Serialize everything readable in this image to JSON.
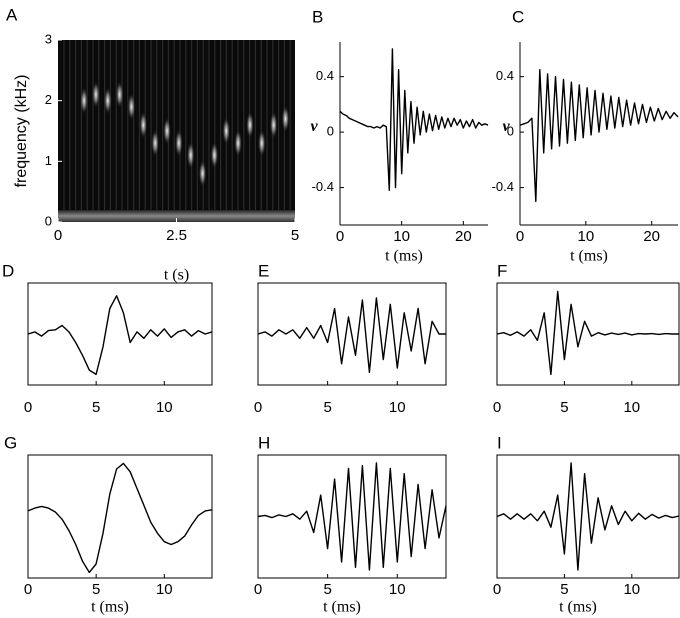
{
  "chart_data": [
    {
      "type": "spectrogram",
      "label": "A",
      "xlabel": "t (s)",
      "ylabel": "frequency  (kHz)",
      "xlim": [
        0,
        5
      ],
      "ylim": [
        0,
        3
      ],
      "xticks": [
        0,
        2.5,
        5
      ],
      "yticks": [
        0,
        1,
        2,
        3
      ],
      "x": [
        0.55,
        0.8,
        1.05,
        1.3,
        1.55,
        1.8,
        2.05,
        2.3,
        2.55,
        2.8,
        3.05,
        3.3,
        3.55,
        3.8,
        4.05,
        4.3,
        4.55,
        4.8
      ],
      "values": [
        2.0,
        2.1,
        2.0,
        2.1,
        1.9,
        1.6,
        1.3,
        1.5,
        1.3,
        1.1,
        0.8,
        1.1,
        1.5,
        1.3,
        1.6,
        1.3,
        1.6,
        1.7
      ]
    },
    {
      "type": "line",
      "label": "B",
      "xlabel": "t (ms)",
      "ylabel": "v",
      "frame": false,
      "color": "#000000",
      "xlim": [
        0,
        24
      ],
      "ylim": [
        -0.67,
        0.65
      ],
      "xticks": [
        0,
        10,
        20
      ],
      "yticks": [
        -0.4,
        0,
        0.4
      ],
      "x": [
        0,
        0.5,
        1,
        1.5,
        2,
        2.5,
        3,
        3.5,
        4,
        4.5,
        5,
        5.5,
        6,
        6.5,
        7,
        7.5,
        8,
        8.5,
        9,
        9.5,
        10,
        10.5,
        11,
        11.5,
        12,
        12.5,
        13,
        13.5,
        14,
        14.5,
        15,
        15.5,
        16,
        16.5,
        17,
        17.5,
        18,
        18.5,
        19,
        19.5,
        20,
        20.5,
        21,
        21.5,
        22,
        22.5,
        23,
        23.5,
        24
      ],
      "values": [
        0.15,
        0.13,
        0.12,
        0.1,
        0.09,
        0.08,
        0.07,
        0.06,
        0.05,
        0.04,
        0.04,
        0.03,
        0.04,
        0.03,
        0.05,
        0.04,
        -0.42,
        0.6,
        -0.4,
        0.45,
        -0.3,
        0.3,
        -0.15,
        0.22,
        -0.08,
        0.18,
        -0.02,
        0.15,
        0.0,
        0.13,
        0.01,
        0.12,
        0.02,
        0.11,
        0.03,
        0.1,
        0.04,
        0.1,
        0.05,
        0.09,
        0.03,
        0.08,
        0.04,
        0.09,
        0.03,
        0.07,
        0.05,
        0.06,
        0.05
      ]
    },
    {
      "type": "line",
      "label": "C",
      "xlabel": "t (ms)",
      "ylabel": "v",
      "frame": false,
      "color": "#000000",
      "xlim": [
        0,
        24
      ],
      "ylim": [
        -0.67,
        0.65
      ],
      "xticks": [
        0,
        10,
        20
      ],
      "yticks": [
        -0.4,
        0,
        0.4
      ],
      "x": [
        0,
        0.6,
        1.2,
        1.8,
        2.4,
        3.0,
        3.6,
        4.2,
        4.8,
        5.4,
        6.0,
        6.6,
        7.2,
        7.8,
        8.4,
        9.0,
        9.6,
        10.2,
        10.8,
        11.4,
        12.0,
        12.6,
        13.2,
        13.8,
        14.4,
        15.0,
        15.6,
        16.2,
        16.8,
        17.4,
        18.0,
        18.6,
        19.2,
        19.8,
        20.4,
        21.0,
        21.6,
        22.2,
        22.8,
        23.4,
        24.0
      ],
      "values": [
        0.05,
        0.06,
        0.07,
        0.1,
        -0.5,
        0.45,
        -0.15,
        0.42,
        -0.12,
        0.4,
        -0.1,
        0.38,
        -0.08,
        0.36,
        -0.06,
        0.34,
        -0.04,
        0.32,
        -0.02,
        0.3,
        0.0,
        0.28,
        0.02,
        0.26,
        0.03,
        0.25,
        0.04,
        0.23,
        0.05,
        0.21,
        0.06,
        0.2,
        0.07,
        0.18,
        0.08,
        0.17,
        0.09,
        0.15,
        0.1,
        0.14,
        0.11
      ]
    },
    {
      "type": "line",
      "label": "D",
      "frame": true,
      "color": "#000000",
      "xlim": [
        0,
        13.5
      ],
      "ylim": [
        -1.2,
        1.2
      ],
      "xticks": [
        0,
        5,
        10
      ],
      "x": [
        0,
        0.5,
        1,
        1.5,
        2,
        2.5,
        3,
        3.5,
        4,
        4.5,
        5,
        5.5,
        6,
        6.5,
        7,
        7.5,
        8,
        8.5,
        9,
        9.5,
        10,
        10.5,
        11,
        11.5,
        12,
        12.5,
        13,
        13.5
      ],
      "values": [
        0.0,
        0.05,
        -0.05,
        0.08,
        0.1,
        0.2,
        0.05,
        -0.2,
        -0.5,
        -0.85,
        -0.95,
        -0.3,
        0.6,
        0.9,
        0.5,
        -0.2,
        0.05,
        -0.1,
        0.1,
        -0.05,
        0.12,
        -0.08,
        0.05,
        0.1,
        -0.05,
        0.08,
        0.0,
        0.05
      ]
    },
    {
      "type": "line",
      "label": "E",
      "frame": true,
      "color": "#000000",
      "xlim": [
        0,
        13.5
      ],
      "ylim": [
        -1.2,
        1.2
      ],
      "xticks": [
        0,
        5,
        10
      ],
      "x": [
        0,
        0.5,
        1,
        1.5,
        2,
        2.5,
        3,
        3.5,
        4,
        4.5,
        5,
        5.5,
        6,
        6.5,
        7,
        7.5,
        8,
        8.5,
        9,
        9.5,
        10,
        10.5,
        11,
        11.5,
        12,
        12.5,
        13,
        13.5
      ],
      "values": [
        0.0,
        0.05,
        -0.05,
        0.1,
        0.0,
        0.1,
        -0.1,
        0.15,
        -0.1,
        0.2,
        -0.2,
        0.6,
        -0.7,
        0.4,
        -0.5,
        0.8,
        -0.9,
        0.85,
        -0.6,
        0.7,
        -0.8,
        0.5,
        -0.4,
        0.6,
        -0.7,
        0.3,
        0.0,
        0.0
      ]
    },
    {
      "type": "line",
      "label": "F",
      "frame": true,
      "color": "#000000",
      "xlim": [
        0,
        13.5
      ],
      "ylim": [
        -1.2,
        1.2
      ],
      "xticks": [
        0,
        5,
        10
      ],
      "x": [
        0,
        0.5,
        1,
        1.5,
        2,
        2.5,
        3,
        3.5,
        4,
        4.5,
        5,
        5.5,
        6,
        6.5,
        7,
        7.5,
        8,
        8.5,
        9,
        9.5,
        10,
        10.5,
        11,
        11.5,
        12,
        12.5,
        13,
        13.5
      ],
      "values": [
        0.0,
        0.03,
        -0.03,
        0.05,
        -0.05,
        0.1,
        -0.15,
        0.5,
        -0.95,
        1.0,
        -0.6,
        0.7,
        -0.3,
        0.3,
        -0.05,
        0.03,
        -0.02,
        0.02,
        -0.01,
        0.02,
        -0.02,
        0.01,
        0.0,
        0.01,
        -0.01,
        0.01,
        0.0,
        0.0
      ]
    },
    {
      "type": "line",
      "label": "G",
      "xlabel": "t (ms)",
      "frame": true,
      "color": "#000000",
      "xlim": [
        0,
        13.5
      ],
      "ylim": [
        -1.1,
        1.1
      ],
      "xticks": [
        0,
        5,
        10
      ],
      "x": [
        0,
        0.5,
        1,
        1.5,
        2,
        2.5,
        3,
        3.5,
        4,
        4.5,
        5,
        5.5,
        6,
        6.5,
        7,
        7.5,
        8,
        8.5,
        9,
        9.5,
        10,
        10.5,
        11,
        11.5,
        12,
        12.5,
        13,
        13.5
      ],
      "values": [
        0.1,
        0.15,
        0.18,
        0.15,
        0.08,
        -0.05,
        -0.25,
        -0.5,
        -0.8,
        -1.0,
        -0.85,
        -0.3,
        0.4,
        0.85,
        0.95,
        0.8,
        0.5,
        0.2,
        -0.1,
        -0.3,
        -0.45,
        -0.5,
        -0.45,
        -0.35,
        -0.15,
        0.02,
        0.1,
        0.12
      ]
    },
    {
      "type": "line",
      "label": "H",
      "xlabel": "t (ms)",
      "frame": true,
      "color": "#000000",
      "xlim": [
        0,
        13.5
      ],
      "ylim": [
        -1.15,
        1.15
      ],
      "xticks": [
        0,
        5,
        10
      ],
      "x": [
        0,
        0.5,
        1,
        1.5,
        2,
        2.5,
        3,
        3.5,
        4,
        4.5,
        5,
        5.5,
        6,
        6.5,
        7,
        7.5,
        8,
        8.5,
        9,
        9.5,
        10,
        10.5,
        11,
        11.5,
        12,
        12.5,
        13,
        13.5
      ],
      "values": [
        0.0,
        0.02,
        -0.02,
        0.03,
        0.0,
        0.05,
        -0.05,
        0.1,
        -0.3,
        0.4,
        -0.6,
        0.7,
        -0.85,
        0.9,
        -0.95,
        0.95,
        -1.0,
        1.0,
        -0.95,
        0.9,
        -0.85,
        0.8,
        -0.75,
        0.6,
        -0.6,
        0.5,
        -0.4,
        0.2
      ]
    },
    {
      "type": "line",
      "label": "I",
      "xlabel": "t (ms)",
      "frame": true,
      "color": "#000000",
      "xlim": [
        0,
        13.5
      ],
      "ylim": [
        -1.15,
        1.15
      ],
      "xticks": [
        0,
        5,
        10
      ],
      "x": [
        0,
        0.5,
        1,
        1.5,
        2,
        2.5,
        3,
        3.5,
        4,
        4.5,
        5,
        5.5,
        6,
        6.5,
        7,
        7.5,
        8,
        8.5,
        9,
        9.5,
        10,
        10.5,
        11,
        11.5,
        12,
        12.5,
        13,
        13.5
      ],
      "values": [
        0.0,
        0.05,
        -0.05,
        0.05,
        -0.05,
        0.05,
        -0.08,
        0.1,
        -0.2,
        0.4,
        -0.7,
        1.0,
        -1.0,
        0.8,
        -0.5,
        0.35,
        -0.25,
        0.2,
        -0.15,
        0.1,
        -0.08,
        0.06,
        -0.05,
        0.04,
        -0.03,
        0.02,
        -0.02,
        0.01
      ]
    }
  ]
}
